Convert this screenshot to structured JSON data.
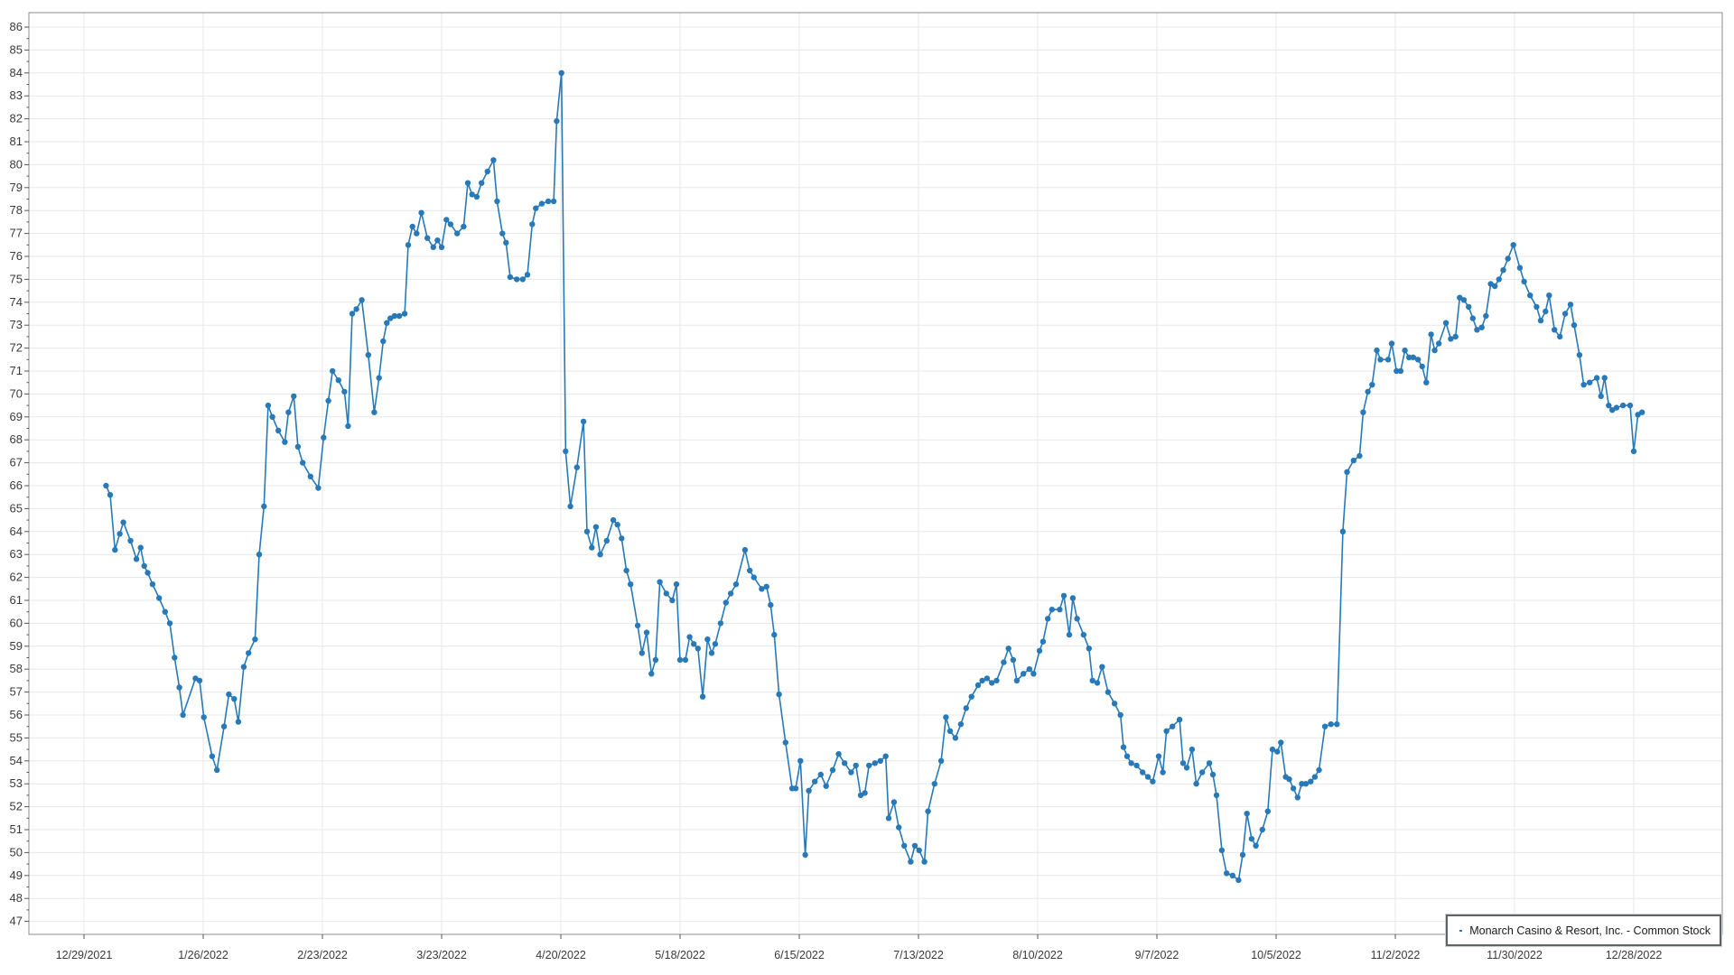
{
  "chart_data": {
    "type": "line",
    "title": "",
    "series_name": "Monarch Casino & Resort, Inc. - Common Stock",
    "line_color": "#2779b8",
    "grid_color": "#e7e7e7",
    "border_color": "#8c8c8c",
    "tick_color": "#555555",
    "label_color": "#3a3a3a",
    "legend_position": "bottom-right",
    "grid": "on",
    "marker": "circle",
    "xlabel": "",
    "ylabel": "",
    "y_tick_min": 47,
    "y_tick_max": 86,
    "ylim": [
      46.4,
      86.6
    ],
    "x_tick_labels": [
      "12/29/2021",
      "1/26/2022",
      "2/23/2022",
      "3/23/2022",
      "4/20/2022",
      "5/18/2022",
      "6/15/2022",
      "7/13/2022",
      "8/10/2022",
      "9/7/2022",
      "10/5/2022",
      "11/2/2022",
      "11/30/2022",
      "12/28/2022"
    ],
    "x_tick_days": [
      0,
      20,
      40,
      60,
      80,
      100,
      120,
      140,
      160,
      180,
      200,
      220,
      240,
      260
    ],
    "points": [
      [
        3.7,
        66.0
      ],
      [
        4.4,
        65.6
      ],
      [
        5.2,
        63.2
      ],
      [
        6.0,
        63.9
      ],
      [
        6.6,
        64.4
      ],
      [
        7.8,
        63.6
      ],
      [
        8.8,
        62.8
      ],
      [
        9.5,
        63.3
      ],
      [
        10.1,
        62.5
      ],
      [
        10.7,
        62.2
      ],
      [
        11.5,
        61.7
      ],
      [
        12.6,
        61.1
      ],
      [
        13.6,
        60.5
      ],
      [
        14.4,
        60.0
      ],
      [
        15.2,
        58.5
      ],
      [
        16.0,
        57.2
      ],
      [
        16.6,
        56.0
      ],
      [
        18.7,
        57.6
      ],
      [
        19.4,
        57.5
      ],
      [
        20.1,
        55.9
      ],
      [
        21.5,
        54.2
      ],
      [
        22.3,
        53.6
      ],
      [
        23.5,
        55.5
      ],
      [
        24.3,
        56.9
      ],
      [
        25.2,
        56.7
      ],
      [
        25.9,
        55.7
      ],
      [
        26.8,
        58.1
      ],
      [
        27.6,
        58.7
      ],
      [
        28.7,
        59.3
      ],
      [
        29.4,
        63.0
      ],
      [
        30.2,
        65.1
      ],
      [
        30.9,
        69.5
      ],
      [
        31.6,
        69.0
      ],
      [
        32.6,
        68.4
      ],
      [
        33.7,
        67.9
      ],
      [
        34.3,
        69.2
      ],
      [
        35.2,
        69.9
      ],
      [
        35.9,
        67.7
      ],
      [
        36.7,
        67.0
      ],
      [
        38.0,
        66.4
      ],
      [
        39.3,
        65.9
      ],
      [
        40.2,
        68.1
      ],
      [
        41.0,
        69.7
      ],
      [
        41.7,
        71.0
      ],
      [
        42.7,
        70.6
      ],
      [
        43.7,
        70.1
      ],
      [
        44.3,
        68.6
      ],
      [
        45.0,
        73.5
      ],
      [
        45.7,
        73.7
      ],
      [
        46.6,
        74.1
      ],
      [
        47.7,
        71.7
      ],
      [
        48.7,
        69.2
      ],
      [
        49.5,
        70.7
      ],
      [
        50.2,
        72.3
      ],
      [
        50.8,
        73.1
      ],
      [
        51.4,
        73.3
      ],
      [
        52.1,
        73.4
      ],
      [
        52.9,
        73.4
      ],
      [
        53.8,
        73.5
      ],
      [
        54.4,
        76.5
      ],
      [
        55.1,
        77.3
      ],
      [
        55.8,
        77.0
      ],
      [
        56.6,
        77.9
      ],
      [
        57.6,
        76.8
      ],
      [
        58.6,
        76.4
      ],
      [
        59.3,
        76.7
      ],
      [
        60.0,
        76.4
      ],
      [
        60.8,
        77.6
      ],
      [
        61.5,
        77.4
      ],
      [
        62.6,
        77.0
      ],
      [
        63.7,
        77.3
      ],
      [
        64.4,
        79.2
      ],
      [
        65.1,
        78.7
      ],
      [
        65.9,
        78.6
      ],
      [
        66.7,
        79.2
      ],
      [
        67.7,
        79.7
      ],
      [
        68.7,
        80.2
      ],
      [
        69.3,
        78.4
      ],
      [
        70.2,
        77.0
      ],
      [
        70.8,
        76.6
      ],
      [
        71.5,
        75.1
      ],
      [
        72.6,
        75.0
      ],
      [
        73.6,
        75.0
      ],
      [
        74.4,
        75.2
      ],
      [
        75.2,
        77.4
      ],
      [
        75.8,
        78.1
      ],
      [
        76.8,
        78.3
      ],
      [
        77.9,
        78.4
      ],
      [
        78.8,
        78.4
      ],
      [
        79.3,
        81.9
      ],
      [
        80.1,
        84.0
      ],
      [
        80.8,
        67.5
      ],
      [
        81.6,
        65.1
      ],
      [
        82.7,
        66.8
      ],
      [
        83.8,
        68.8
      ],
      [
        84.4,
        64.0
      ],
      [
        85.2,
        63.3
      ],
      [
        85.9,
        64.2
      ],
      [
        86.6,
        63.0
      ],
      [
        87.7,
        63.6
      ],
      [
        88.8,
        64.5
      ],
      [
        89.5,
        64.3
      ],
      [
        90.2,
        63.7
      ],
      [
        91.0,
        62.3
      ],
      [
        91.7,
        61.7
      ],
      [
        92.9,
        59.9
      ],
      [
        93.6,
        58.7
      ],
      [
        94.4,
        59.6
      ],
      [
        95.2,
        57.8
      ],
      [
        95.9,
        58.4
      ],
      [
        96.6,
        61.8
      ],
      [
        97.7,
        61.3
      ],
      [
        98.7,
        61.0
      ],
      [
        99.4,
        61.7
      ],
      [
        100.0,
        58.4
      ],
      [
        100.9,
        58.4
      ],
      [
        101.6,
        59.4
      ],
      [
        102.3,
        59.1
      ],
      [
        103.0,
        58.9
      ],
      [
        103.8,
        56.8
      ],
      [
        104.6,
        59.3
      ],
      [
        105.3,
        58.7
      ],
      [
        105.9,
        59.1
      ],
      [
        106.8,
        60.0
      ],
      [
        107.7,
        60.9
      ],
      [
        108.5,
        61.3
      ],
      [
        109.4,
        61.7
      ],
      [
        110.9,
        63.2
      ],
      [
        111.7,
        62.3
      ],
      [
        112.4,
        62.0
      ],
      [
        113.7,
        61.5
      ],
      [
        114.5,
        61.6
      ],
      [
        115.2,
        60.8
      ],
      [
        115.8,
        59.5
      ],
      [
        116.6,
        56.9
      ],
      [
        117.7,
        54.8
      ],
      [
        118.8,
        52.8
      ],
      [
        119.4,
        52.8
      ],
      [
        120.2,
        54.0
      ],
      [
        121.0,
        49.9
      ],
      [
        121.6,
        52.7
      ],
      [
        122.6,
        53.1
      ],
      [
        123.6,
        53.4
      ],
      [
        124.5,
        52.9
      ],
      [
        125.6,
        53.6
      ],
      [
        126.6,
        54.3
      ],
      [
        127.6,
        53.9
      ],
      [
        128.7,
        53.5
      ],
      [
        129.5,
        53.8
      ],
      [
        130.3,
        52.5
      ],
      [
        131.0,
        52.6
      ],
      [
        131.7,
        53.8
      ],
      [
        132.7,
        53.9
      ],
      [
        133.6,
        54.0
      ],
      [
        134.5,
        54.2
      ],
      [
        135.0,
        51.5
      ],
      [
        135.9,
        52.2
      ],
      [
        136.7,
        51.1
      ],
      [
        137.6,
        50.3
      ],
      [
        138.7,
        49.6
      ],
      [
        139.4,
        50.3
      ],
      [
        140.1,
        50.1
      ],
      [
        141.0,
        49.6
      ],
      [
        141.6,
        51.8
      ],
      [
        142.7,
        53.0
      ],
      [
        143.8,
        54.0
      ],
      [
        144.6,
        55.9
      ],
      [
        145.3,
        55.3
      ],
      [
        146.2,
        55.0
      ],
      [
        147.1,
        55.6
      ],
      [
        148.0,
        56.3
      ],
      [
        148.9,
        56.8
      ],
      [
        150.0,
        57.3
      ],
      [
        150.7,
        57.5
      ],
      [
        151.5,
        57.6
      ],
      [
        152.3,
        57.4
      ],
      [
        153.1,
        57.5
      ],
      [
        154.3,
        58.3
      ],
      [
        155.1,
        58.9
      ],
      [
        155.9,
        58.4
      ],
      [
        156.5,
        57.5
      ],
      [
        157.6,
        57.8
      ],
      [
        158.6,
        58.0
      ],
      [
        159.3,
        57.8
      ],
      [
        160.3,
        58.8
      ],
      [
        160.9,
        59.2
      ],
      [
        161.7,
        60.2
      ],
      [
        162.4,
        60.6
      ],
      [
        163.7,
        60.6
      ],
      [
        164.4,
        61.2
      ],
      [
        165.3,
        59.5
      ],
      [
        165.9,
        61.1
      ],
      [
        166.6,
        60.2
      ],
      [
        167.7,
        59.5
      ],
      [
        168.6,
        58.9
      ],
      [
        169.2,
        57.5
      ],
      [
        170.0,
        57.4
      ],
      [
        170.8,
        58.1
      ],
      [
        171.8,
        57.0
      ],
      [
        172.9,
        56.5
      ],
      [
        173.9,
        56.0
      ],
      [
        174.4,
        54.6
      ],
      [
        175.0,
        54.2
      ],
      [
        175.7,
        53.9
      ],
      [
        176.6,
        53.8
      ],
      [
        177.6,
        53.5
      ],
      [
        178.5,
        53.3
      ],
      [
        179.3,
        53.1
      ],
      [
        180.3,
        54.2
      ],
      [
        181.0,
        53.5
      ],
      [
        181.6,
        55.3
      ],
      [
        182.6,
        55.5
      ],
      [
        183.8,
        55.8
      ],
      [
        184.4,
        53.9
      ],
      [
        185.0,
        53.7
      ],
      [
        185.9,
        54.5
      ],
      [
        186.6,
        53.0
      ],
      [
        187.6,
        53.5
      ],
      [
        188.8,
        53.9
      ],
      [
        189.4,
        53.4
      ],
      [
        190.0,
        52.5
      ],
      [
        190.9,
        50.1
      ],
      [
        191.7,
        49.1
      ],
      [
        192.7,
        49.0
      ],
      [
        193.7,
        48.8
      ],
      [
        194.4,
        49.9
      ],
      [
        195.1,
        51.7
      ],
      [
        195.9,
        50.6
      ],
      [
        196.6,
        50.3
      ],
      [
        197.7,
        51.0
      ],
      [
        198.6,
        51.8
      ],
      [
        199.4,
        54.5
      ],
      [
        200.2,
        54.4
      ],
      [
        200.8,
        54.8
      ],
      [
        201.6,
        53.3
      ],
      [
        202.2,
        53.2
      ],
      [
        202.9,
        52.8
      ],
      [
        203.6,
        52.4
      ],
      [
        204.3,
        53.0
      ],
      [
        205.0,
        53.0
      ],
      [
        205.8,
        53.1
      ],
      [
        206.5,
        53.3
      ],
      [
        207.2,
        53.6
      ],
      [
        208.2,
        55.5
      ],
      [
        209.2,
        55.6
      ],
      [
        210.2,
        55.6
      ],
      [
        211.2,
        64.0
      ],
      [
        211.9,
        66.6
      ],
      [
        213.0,
        67.1
      ],
      [
        214.0,
        67.3
      ],
      [
        214.6,
        69.2
      ],
      [
        215.4,
        70.1
      ],
      [
        216.1,
        70.4
      ],
      [
        216.9,
        71.9
      ],
      [
        217.5,
        71.5
      ],
      [
        218.8,
        71.5
      ],
      [
        219.4,
        72.2
      ],
      [
        220.2,
        71.0
      ],
      [
        220.9,
        71.0
      ],
      [
        221.6,
        71.9
      ],
      [
        222.3,
        71.6
      ],
      [
        223.0,
        71.6
      ],
      [
        223.8,
        71.5
      ],
      [
        224.5,
        71.2
      ],
      [
        225.2,
        70.5
      ],
      [
        226.0,
        72.6
      ],
      [
        226.6,
        71.9
      ],
      [
        227.3,
        72.2
      ],
      [
        228.5,
        73.1
      ],
      [
        229.3,
        72.4
      ],
      [
        230.1,
        72.5
      ],
      [
        230.8,
        74.2
      ],
      [
        231.5,
        74.1
      ],
      [
        232.3,
        73.8
      ],
      [
        233.0,
        73.3
      ],
      [
        233.7,
        72.8
      ],
      [
        234.5,
        72.9
      ],
      [
        235.2,
        73.4
      ],
      [
        236.0,
        74.8
      ],
      [
        236.7,
        74.7
      ],
      [
        237.4,
        75.0
      ],
      [
        238.1,
        75.4
      ],
      [
        238.9,
        75.9
      ],
      [
        239.8,
        76.5
      ],
      [
        240.9,
        75.5
      ],
      [
        241.6,
        74.9
      ],
      [
        242.6,
        74.3
      ],
      [
        243.7,
        73.8
      ],
      [
        244.4,
        73.2
      ],
      [
        245.2,
        73.6
      ],
      [
        245.8,
        74.3
      ],
      [
        246.7,
        72.8
      ],
      [
        247.6,
        72.5
      ],
      [
        248.5,
        73.5
      ],
      [
        249.4,
        73.9
      ],
      [
        250.0,
        73.0
      ],
      [
        250.9,
        71.7
      ],
      [
        251.6,
        70.4
      ],
      [
        252.6,
        70.5
      ],
      [
        253.8,
        70.7
      ],
      [
        254.5,
        69.9
      ],
      [
        255.1,
        70.7
      ],
      [
        255.8,
        69.5
      ],
      [
        256.4,
        69.3
      ],
      [
        257.1,
        69.4
      ],
      [
        258.2,
        69.5
      ],
      [
        259.4,
        69.5
      ],
      [
        260.0,
        67.5
      ],
      [
        260.7,
        69.1
      ],
      [
        261.4,
        69.2
      ]
    ]
  },
  "legend": {
    "label": "Monarch Casino & Resort, Inc. - Common Stock"
  }
}
